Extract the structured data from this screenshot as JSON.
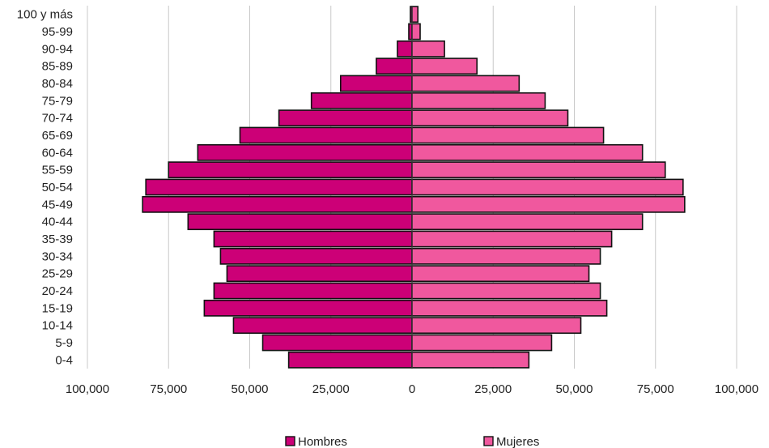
{
  "chart_data": {
    "type": "bar",
    "orientation": "horizontal",
    "subtype": "population-pyramid",
    "categories": [
      "0-4",
      "5-9",
      "10-14",
      "15-19",
      "20-24",
      "25-29",
      "30-34",
      "35-39",
      "40-44",
      "45-49",
      "50-54",
      "55-59",
      "60-64",
      "65-69",
      "70-74",
      "75-79",
      "80-84",
      "85-89",
      "90-94",
      "95-99",
      "100 y más"
    ],
    "series": [
      {
        "name": "Hombres",
        "color": "#cc0077",
        "values": [
          38000,
          46000,
          55000,
          64000,
          61000,
          57000,
          59000,
          61000,
          69000,
          83000,
          82000,
          75000,
          66000,
          53000,
          41000,
          31000,
          22000,
          11000,
          4500,
          1000,
          500
        ]
      },
      {
        "name": "Mujeres",
        "color": "#f0589e",
        "values": [
          36000,
          43000,
          52000,
          60000,
          58000,
          54500,
          58000,
          61500,
          71000,
          84000,
          83500,
          78000,
          71000,
          59000,
          48000,
          41000,
          33000,
          20000,
          10000,
          2500,
          1800
        ]
      }
    ],
    "xlim": [
      -100000,
      100000
    ],
    "x_ticks": [
      {
        "value": -100000,
        "label": "100,000"
      },
      {
        "value": -75000,
        "label": "75,000"
      },
      {
        "value": -50000,
        "label": "50,000"
      },
      {
        "value": -25000,
        "label": "25,000"
      },
      {
        "value": 0,
        "label": "0"
      },
      {
        "value": 25000,
        "label": "25,000"
      },
      {
        "value": 50000,
        "label": "50,000"
      },
      {
        "value": 75000,
        "label": "75,000"
      },
      {
        "value": 100000,
        "label": "100,000"
      }
    ],
    "title": "",
    "xlabel": "",
    "ylabel": "",
    "grid": "vertical",
    "legend_position": "bottom"
  }
}
